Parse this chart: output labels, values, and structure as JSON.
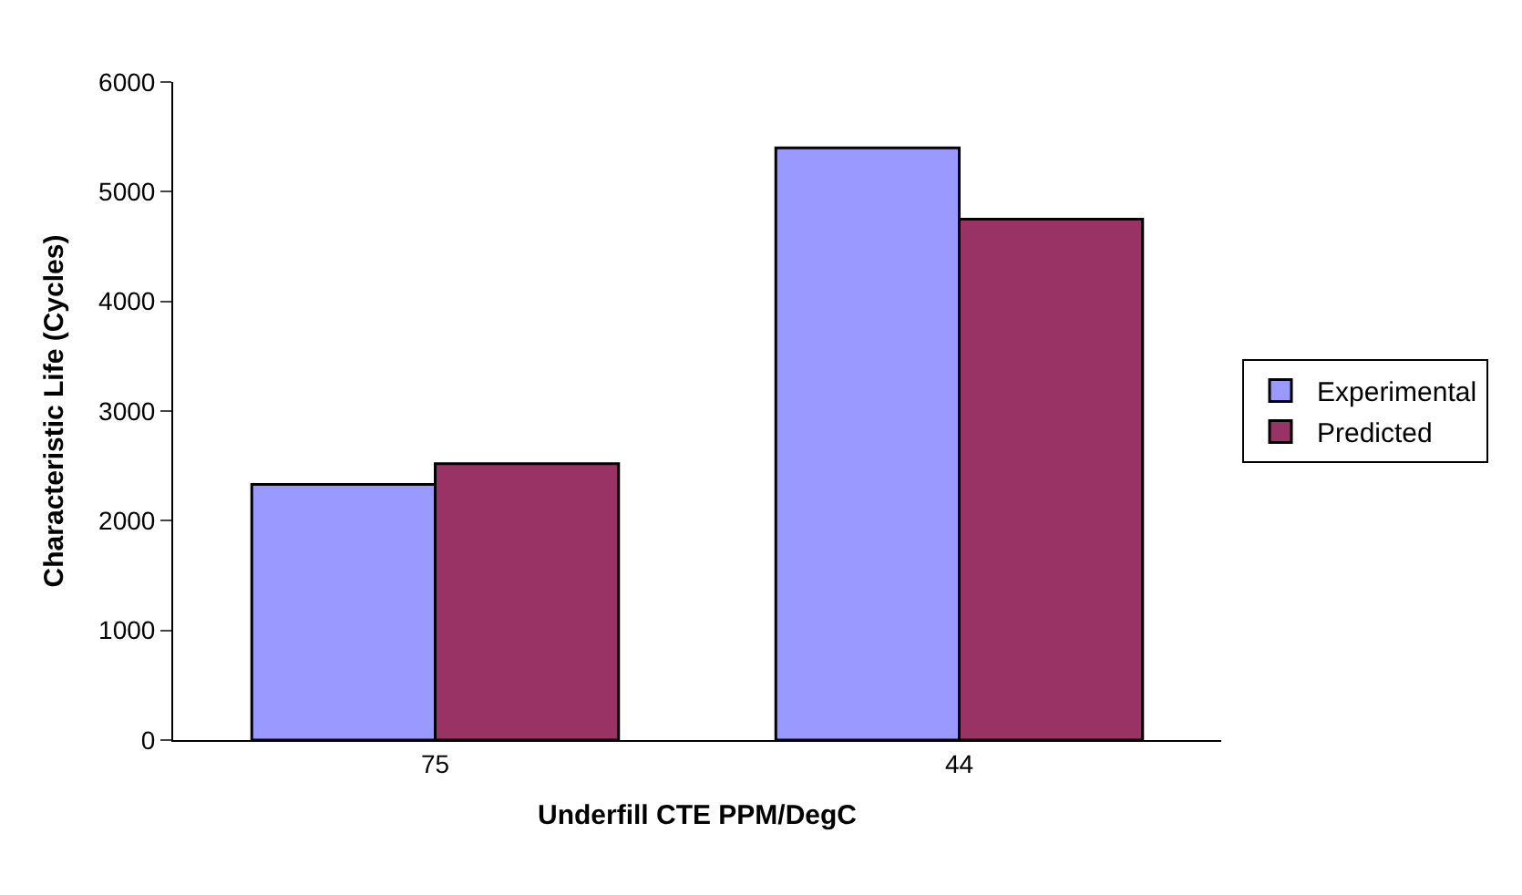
{
  "chart_data": {
    "type": "bar",
    "xlabel": "Underfill CTE PPM/DegC",
    "ylabel": "Characteristic Life (Cycles)",
    "categories": [
      "75",
      "44"
    ],
    "series": [
      {
        "name": "Experimental",
        "color": "#9999ff",
        "values": [
          2330,
          5400
        ]
      },
      {
        "name": "Predicted",
        "color": "#993366",
        "values": [
          2520,
          4750
        ]
      }
    ],
    "ylim": [
      0,
      6000
    ],
    "yticks": [
      0,
      1000,
      2000,
      3000,
      4000,
      5000,
      6000
    ],
    "legend": "right"
  }
}
